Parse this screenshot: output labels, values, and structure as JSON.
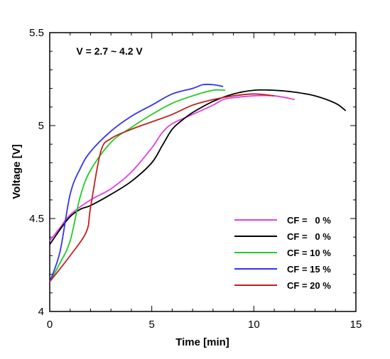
{
  "chart_data": {
    "type": "line",
    "title": "",
    "xlabel": "Time [min]",
    "ylabel": "Voltage [V]",
    "xlim": [
      0,
      15
    ],
    "ylim": [
      4,
      5.5
    ],
    "x_ticks": [
      0,
      5,
      10,
      15
    ],
    "x_tick_labels": [
      "0",
      "5",
      "10",
      "15"
    ],
    "y_ticks": [
      4,
      4.5,
      5,
      5.5
    ],
    "y_tick_labels": [
      "4",
      "4.5",
      "5",
      "5.5"
    ],
    "grid": false,
    "legend_position": "bottom-right",
    "annotations": [
      {
        "text": "V = 2.7 ~ 4.2 V",
        "x": 1.3,
        "y": 5.4
      }
    ],
    "series": [
      {
        "name": "CF =   0 %",
        "color": "#e040e0",
        "points": [
          [
            0,
            4.38
          ],
          [
            0.5,
            4.45
          ],
          [
            1,
            4.52
          ],
          [
            2,
            4.6
          ],
          [
            3,
            4.66
          ],
          [
            4,
            4.75
          ],
          [
            5,
            4.88
          ],
          [
            5.5,
            4.96
          ],
          [
            6,
            5.01
          ],
          [
            7,
            5.06
          ],
          [
            8,
            5.11
          ],
          [
            8.5,
            5.14
          ],
          [
            9,
            5.15
          ],
          [
            10,
            5.16
          ],
          [
            11,
            5.16
          ],
          [
            12,
            5.14
          ]
        ]
      },
      {
        "name": "CF =   0 %",
        "color": "#000000",
        "points": [
          [
            0,
            4.36
          ],
          [
            0.5,
            4.44
          ],
          [
            1,
            4.51
          ],
          [
            1.5,
            4.55
          ],
          [
            2,
            4.57
          ],
          [
            3,
            4.63
          ],
          [
            4,
            4.7
          ],
          [
            5,
            4.8
          ],
          [
            5.5,
            4.89
          ],
          [
            6,
            4.98
          ],
          [
            6.5,
            5.03
          ],
          [
            7,
            5.07
          ],
          [
            8,
            5.13
          ],
          [
            9,
            5.17
          ],
          [
            10,
            5.19
          ],
          [
            11,
            5.19
          ],
          [
            12,
            5.18
          ],
          [
            13,
            5.16
          ],
          [
            14,
            5.12
          ],
          [
            14.5,
            5.08
          ]
        ]
      },
      {
        "name": "CF = 10 %",
        "color": "#22cc22",
        "points": [
          [
            0,
            4.16
          ],
          [
            0.5,
            4.26
          ],
          [
            1,
            4.38
          ],
          [
            1.5,
            4.62
          ],
          [
            2,
            4.76
          ],
          [
            3,
            4.91
          ],
          [
            4,
            4.99
          ],
          [
            5,
            5.06
          ],
          [
            6,
            5.12
          ],
          [
            7,
            5.16
          ],
          [
            8,
            5.19
          ],
          [
            8.6,
            5.19
          ]
        ]
      },
      {
        "name": "CF = 15 %",
        "color": "#3333ee",
        "points": [
          [
            0,
            4.16
          ],
          [
            0.5,
            4.32
          ],
          [
            1,
            4.63
          ],
          [
            1.5,
            4.77
          ],
          [
            2,
            4.86
          ],
          [
            3,
            4.97
          ],
          [
            4,
            5.05
          ],
          [
            5,
            5.11
          ],
          [
            6,
            5.17
          ],
          [
            7,
            5.2
          ],
          [
            7.5,
            5.22
          ],
          [
            8,
            5.22
          ],
          [
            8.5,
            5.21
          ]
        ]
      },
      {
        "name": "CF = 20 %",
        "color": "#c02020",
        "points": [
          [
            0,
            4.16
          ],
          [
            1,
            4.3
          ],
          [
            1.8,
            4.43
          ],
          [
            2,
            4.56
          ],
          [
            2.5,
            4.86
          ],
          [
            3,
            4.93
          ],
          [
            4,
            4.98
          ],
          [
            5,
            5.02
          ],
          [
            6,
            5.06
          ],
          [
            7,
            5.11
          ],
          [
            8,
            5.14
          ],
          [
            9,
            5.16
          ],
          [
            10,
            5.17
          ],
          [
            11,
            5.16
          ]
        ]
      }
    ]
  }
}
